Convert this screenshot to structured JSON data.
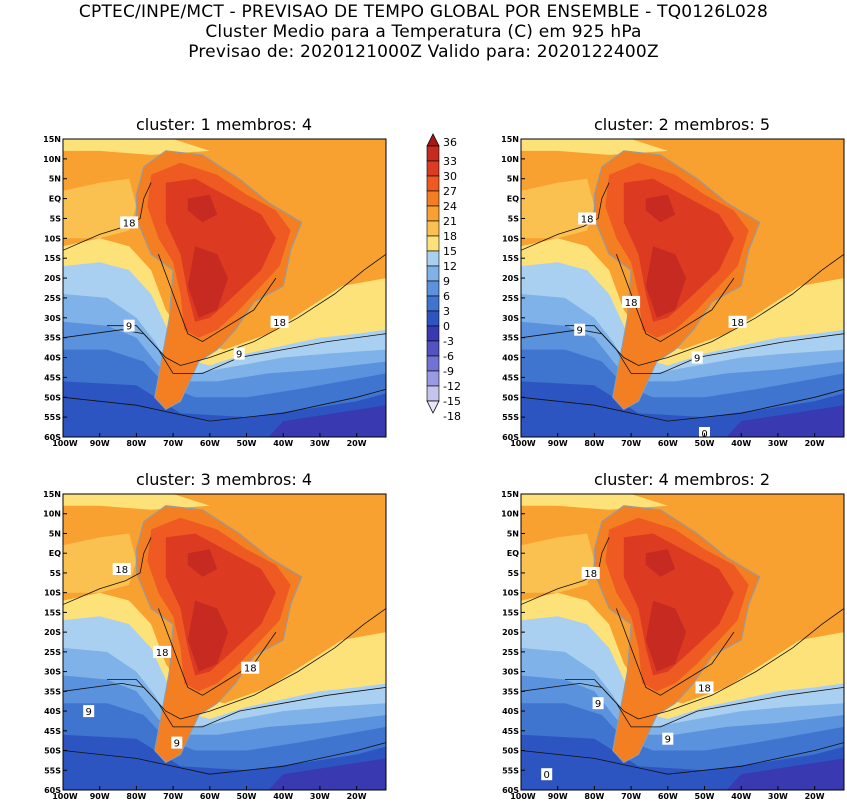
{
  "header": {
    "line1": "CPTEC/INPE/MCT - PREVISAO DE TEMPO GLOBAL POR ENSEMBLE - TQ0126L028",
    "line2": "Cluster Medio para a Temperatura (C) em 925 hPa",
    "line3": "Previsao de: 2020121000Z   Valido para: 2020122400Z"
  },
  "colorbar": {
    "levels": [
      "36",
      "33",
      "30",
      "27",
      "24",
      "21",
      "18",
      "15",
      "12",
      "9",
      "6",
      "3",
      "0",
      "-3",
      "-6",
      "-9",
      "-12",
      "-15",
      "-18"
    ],
    "colors": [
      "#a81818",
      "#c62a20",
      "#dd3a22",
      "#ee5a22",
      "#f47e22",
      "#f8a130",
      "#fbc150",
      "#fde27a",
      "#a9d0f0",
      "#7fb2e8",
      "#5a92de",
      "#3f74cf",
      "#2c55c2",
      "#3939b2",
      "#5252c2",
      "#7272d4",
      "#9a9ae2",
      "#c4c4ee",
      "#e6e6f8"
    ]
  },
  "axes": {
    "lat_labels": [
      "15N",
      "10N",
      "5N",
      "EQ",
      "5S",
      "10S",
      "15S",
      "20S",
      "25S",
      "30S",
      "35S",
      "40S",
      "45S",
      "50S",
      "55S",
      "60S"
    ],
    "lon_labels": [
      "100W",
      "90W",
      "80W",
      "70W",
      "60W",
      "50W",
      "40W",
      "30W",
      "20W"
    ]
  },
  "panels": [
    {
      "title": "cluster: 1   membros: 4",
      "contour_labels": [
        {
          "text": "18",
          "lon": -82,
          "lat": -6
        },
        {
          "text": "9",
          "lon": -82,
          "lat": -32
        },
        {
          "text": "18",
          "lon": -41,
          "lat": -31
        },
        {
          "text": "9",
          "lon": -52,
          "lat": -39
        }
      ]
    },
    {
      "title": "cluster: 2   membros: 5",
      "contour_labels": [
        {
          "text": "18",
          "lon": -82,
          "lat": -5
        },
        {
          "text": "18",
          "lon": -70,
          "lat": -26
        },
        {
          "text": "9",
          "lon": -84,
          "lat": -33
        },
        {
          "text": "18",
          "lon": -41,
          "lat": -31
        },
        {
          "text": "9",
          "lon": -52,
          "lat": -40
        },
        {
          "text": "0",
          "lon": -50,
          "lat": -59
        }
      ]
    },
    {
      "title": "cluster: 3   membros: 4",
      "contour_labels": [
        {
          "text": "18",
          "lon": -84,
          "lat": -4
        },
        {
          "text": "18",
          "lon": -73,
          "lat": -25
        },
        {
          "text": "18",
          "lon": -49,
          "lat": -29
        },
        {
          "text": "9",
          "lon": -93,
          "lat": -40
        },
        {
          "text": "9",
          "lon": -69,
          "lat": -48
        }
      ]
    },
    {
      "title": "cluster: 4   membros: 2",
      "contour_labels": [
        {
          "text": "18",
          "lon": -81,
          "lat": -5
        },
        {
          "text": "18",
          "lon": -50,
          "lat": -34
        },
        {
          "text": "9",
          "lon": -79,
          "lat": -38
        },
        {
          "text": "9",
          "lon": -60,
          "lat": -47
        },
        {
          "text": "0",
          "lon": -93,
          "lat": -56
        }
      ]
    }
  ]
}
